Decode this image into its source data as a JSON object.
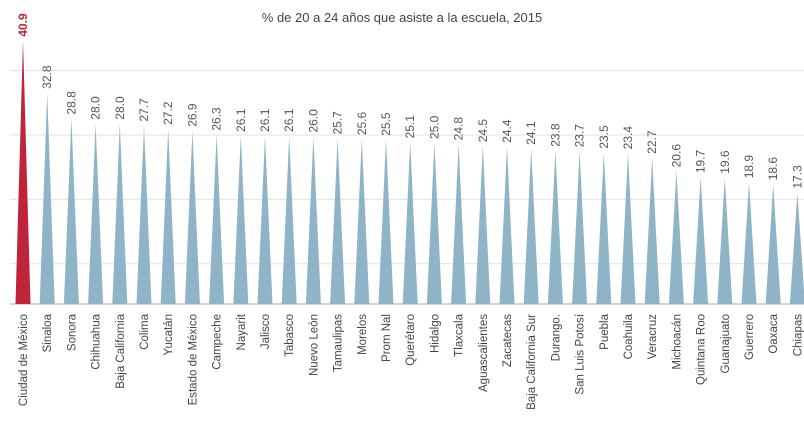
{
  "chart_data": {
    "type": "bar",
    "title": "% de 20 a 24 años que asiste a la escuela, 2015",
    "xlabel": "",
    "ylabel": "",
    "categories": [
      "Ciudad de México",
      "Sinaloa",
      "Sonora",
      "Chihuahua",
      "Baja California",
      "Colima",
      "Yucatán",
      "Estado de México",
      "Campeche",
      "Nayarit",
      "Jalisco",
      "Tabasco",
      "Nuevo León",
      "Tamaulipas",
      "Morelos",
      "Prom Nal",
      "Querétaro",
      "Hidalgo",
      "Tlaxcala",
      "Aguascalientes",
      "Zacatecas",
      "Baja California Sur",
      "Durango.",
      "San Luis Potosí",
      "Puebla",
      "Coahuila",
      "Veracruz",
      "Michoacán",
      "Quintana Roo",
      "Guanajuato",
      "Guerrero",
      "Oaxaca",
      "Chiapas"
    ],
    "values": [
      40.9,
      32.8,
      28.8,
      28.0,
      28.0,
      27.7,
      27.2,
      26.9,
      26.3,
      26.1,
      26.1,
      26.1,
      26.0,
      25.7,
      25.6,
      25.5,
      25.1,
      25.0,
      24.8,
      24.5,
      24.4,
      24.1,
      23.8,
      23.7,
      23.5,
      23.4,
      22.7,
      20.6,
      19.7,
      19.6,
      18.9,
      18.6,
      17.3
    ],
    "value_labels": [
      "40.9",
      "32.8",
      "28.8",
      "28.0",
      "28.0",
      "27.7",
      "27.2",
      "26.9",
      "26.3",
      "26.1",
      "26.1",
      "26.1",
      "26.0",
      "25.7",
      "25.6",
      "25.5",
      "25.1",
      "25.0",
      "24.8",
      "24.5",
      "24.4",
      "24.1",
      "23.8",
      "23.7",
      "23.5",
      "23.4",
      "22.7",
      "20.6",
      "19.7",
      "19.6",
      "18.9",
      "18.6",
      "17.3"
    ],
    "ylim": [
      0,
      41
    ],
    "grid": true,
    "highlight_index": 0,
    "colors": {
      "highlight": "#c0243a",
      "bar": "#8fb4c8",
      "grid": "#e2e2e2",
      "axis": "#aaaaaa"
    }
  }
}
